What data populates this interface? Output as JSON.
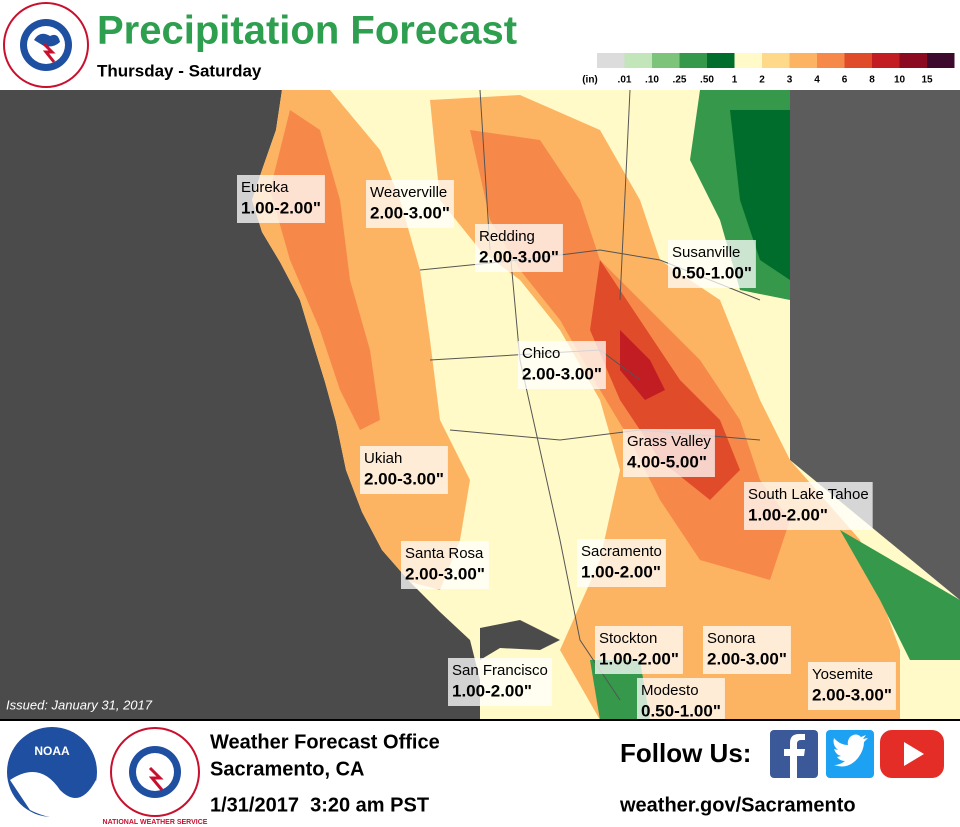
{
  "header": {
    "title": "Precipitation Forecast",
    "subtitle": "Thursday - Saturday"
  },
  "legend": {
    "unit": "(in)",
    "colors": [
      "#dcdcdc",
      "#c2e5b9",
      "#7cc47a",
      "#35984a",
      "#006d2c",
      "#fffac8",
      "#ffd98a",
      "#fdb462",
      "#f6894a",
      "#e04b2a",
      "#c21d22",
      "#8b0a1f",
      "#3d0a2e"
    ],
    "labels": [
      ".01",
      ".10",
      ".25",
      ".50",
      "1",
      "2",
      "3",
      "4",
      "6",
      "8",
      "10",
      "15"
    ]
  },
  "map": {
    "issued": "Issued: January 31, 2017",
    "cities": [
      {
        "name": "Eureka",
        "amount": "1.00-2.00\""
      },
      {
        "name": "Weaverville",
        "amount": "2.00-3.00\""
      },
      {
        "name": "Redding",
        "amount": "2.00-3.00\""
      },
      {
        "name": "Susanville",
        "amount": "0.50-1.00\""
      },
      {
        "name": "Chico",
        "amount": "2.00-3.00\""
      },
      {
        "name": "Ukiah",
        "amount": "2.00-3.00\""
      },
      {
        "name": "Grass Valley",
        "amount": "4.00-5.00\""
      },
      {
        "name": "South Lake Tahoe",
        "amount": "1.00-2.00\""
      },
      {
        "name": "Santa Rosa",
        "amount": "2.00-3.00\""
      },
      {
        "name": "Sacramento",
        "amount": "1.00-2.00\""
      },
      {
        "name": "Stockton",
        "amount": "1.00-2.00\""
      },
      {
        "name": "Sonora",
        "amount": "2.00-3.00\""
      },
      {
        "name": "San Francisco",
        "amount": "1.00-2.00\""
      },
      {
        "name": "Modesto",
        "amount": "0.50-1.00\""
      },
      {
        "name": "Yosemite",
        "amount": "2.00-3.00\""
      }
    ]
  },
  "footer": {
    "noaa": "NOAA",
    "nws": "NATIONAL WEATHER SERVICE",
    "office": "Weather Forecast Office",
    "location": "Sacramento, CA",
    "datetime": "1/31/2017  3:20 am PST",
    "follow": "Follow Us:",
    "website": "weather.gov/Sacramento"
  }
}
